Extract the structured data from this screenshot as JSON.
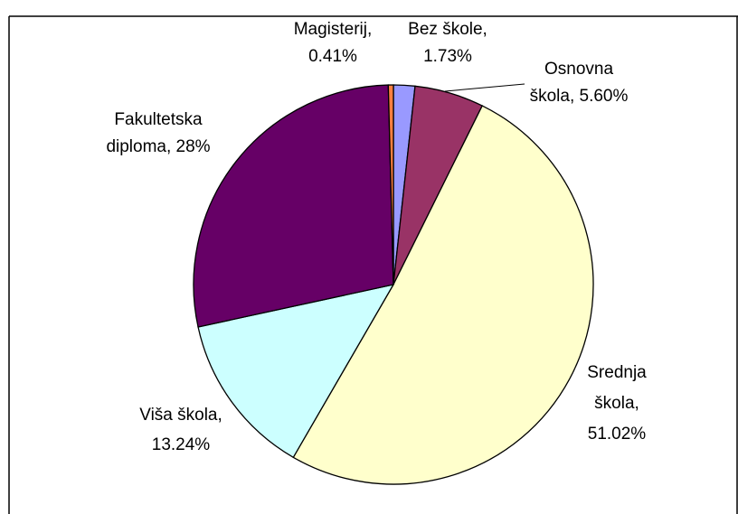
{
  "chart_data": {
    "type": "pie",
    "labels": [
      [
        "Bez škole,",
        "1.73%"
      ],
      [
        "Osnovna",
        "škola, 5.60%"
      ],
      [
        "Srednja",
        "škola,",
        "51.02%"
      ],
      [
        "Viša škola,",
        "13.24%"
      ],
      [
        "Fakultetska",
        "diploma, 28%"
      ],
      [
        "Magisterij,",
        "0.41%"
      ]
    ],
    "values": [
      1.73,
      5.6,
      51.02,
      13.24,
      28,
      0.41
    ],
    "colors": [
      "#9999ff",
      "#993366",
      "#ffffcc",
      "#ccffff",
      "#660066",
      "#ff8040"
    ]
  }
}
